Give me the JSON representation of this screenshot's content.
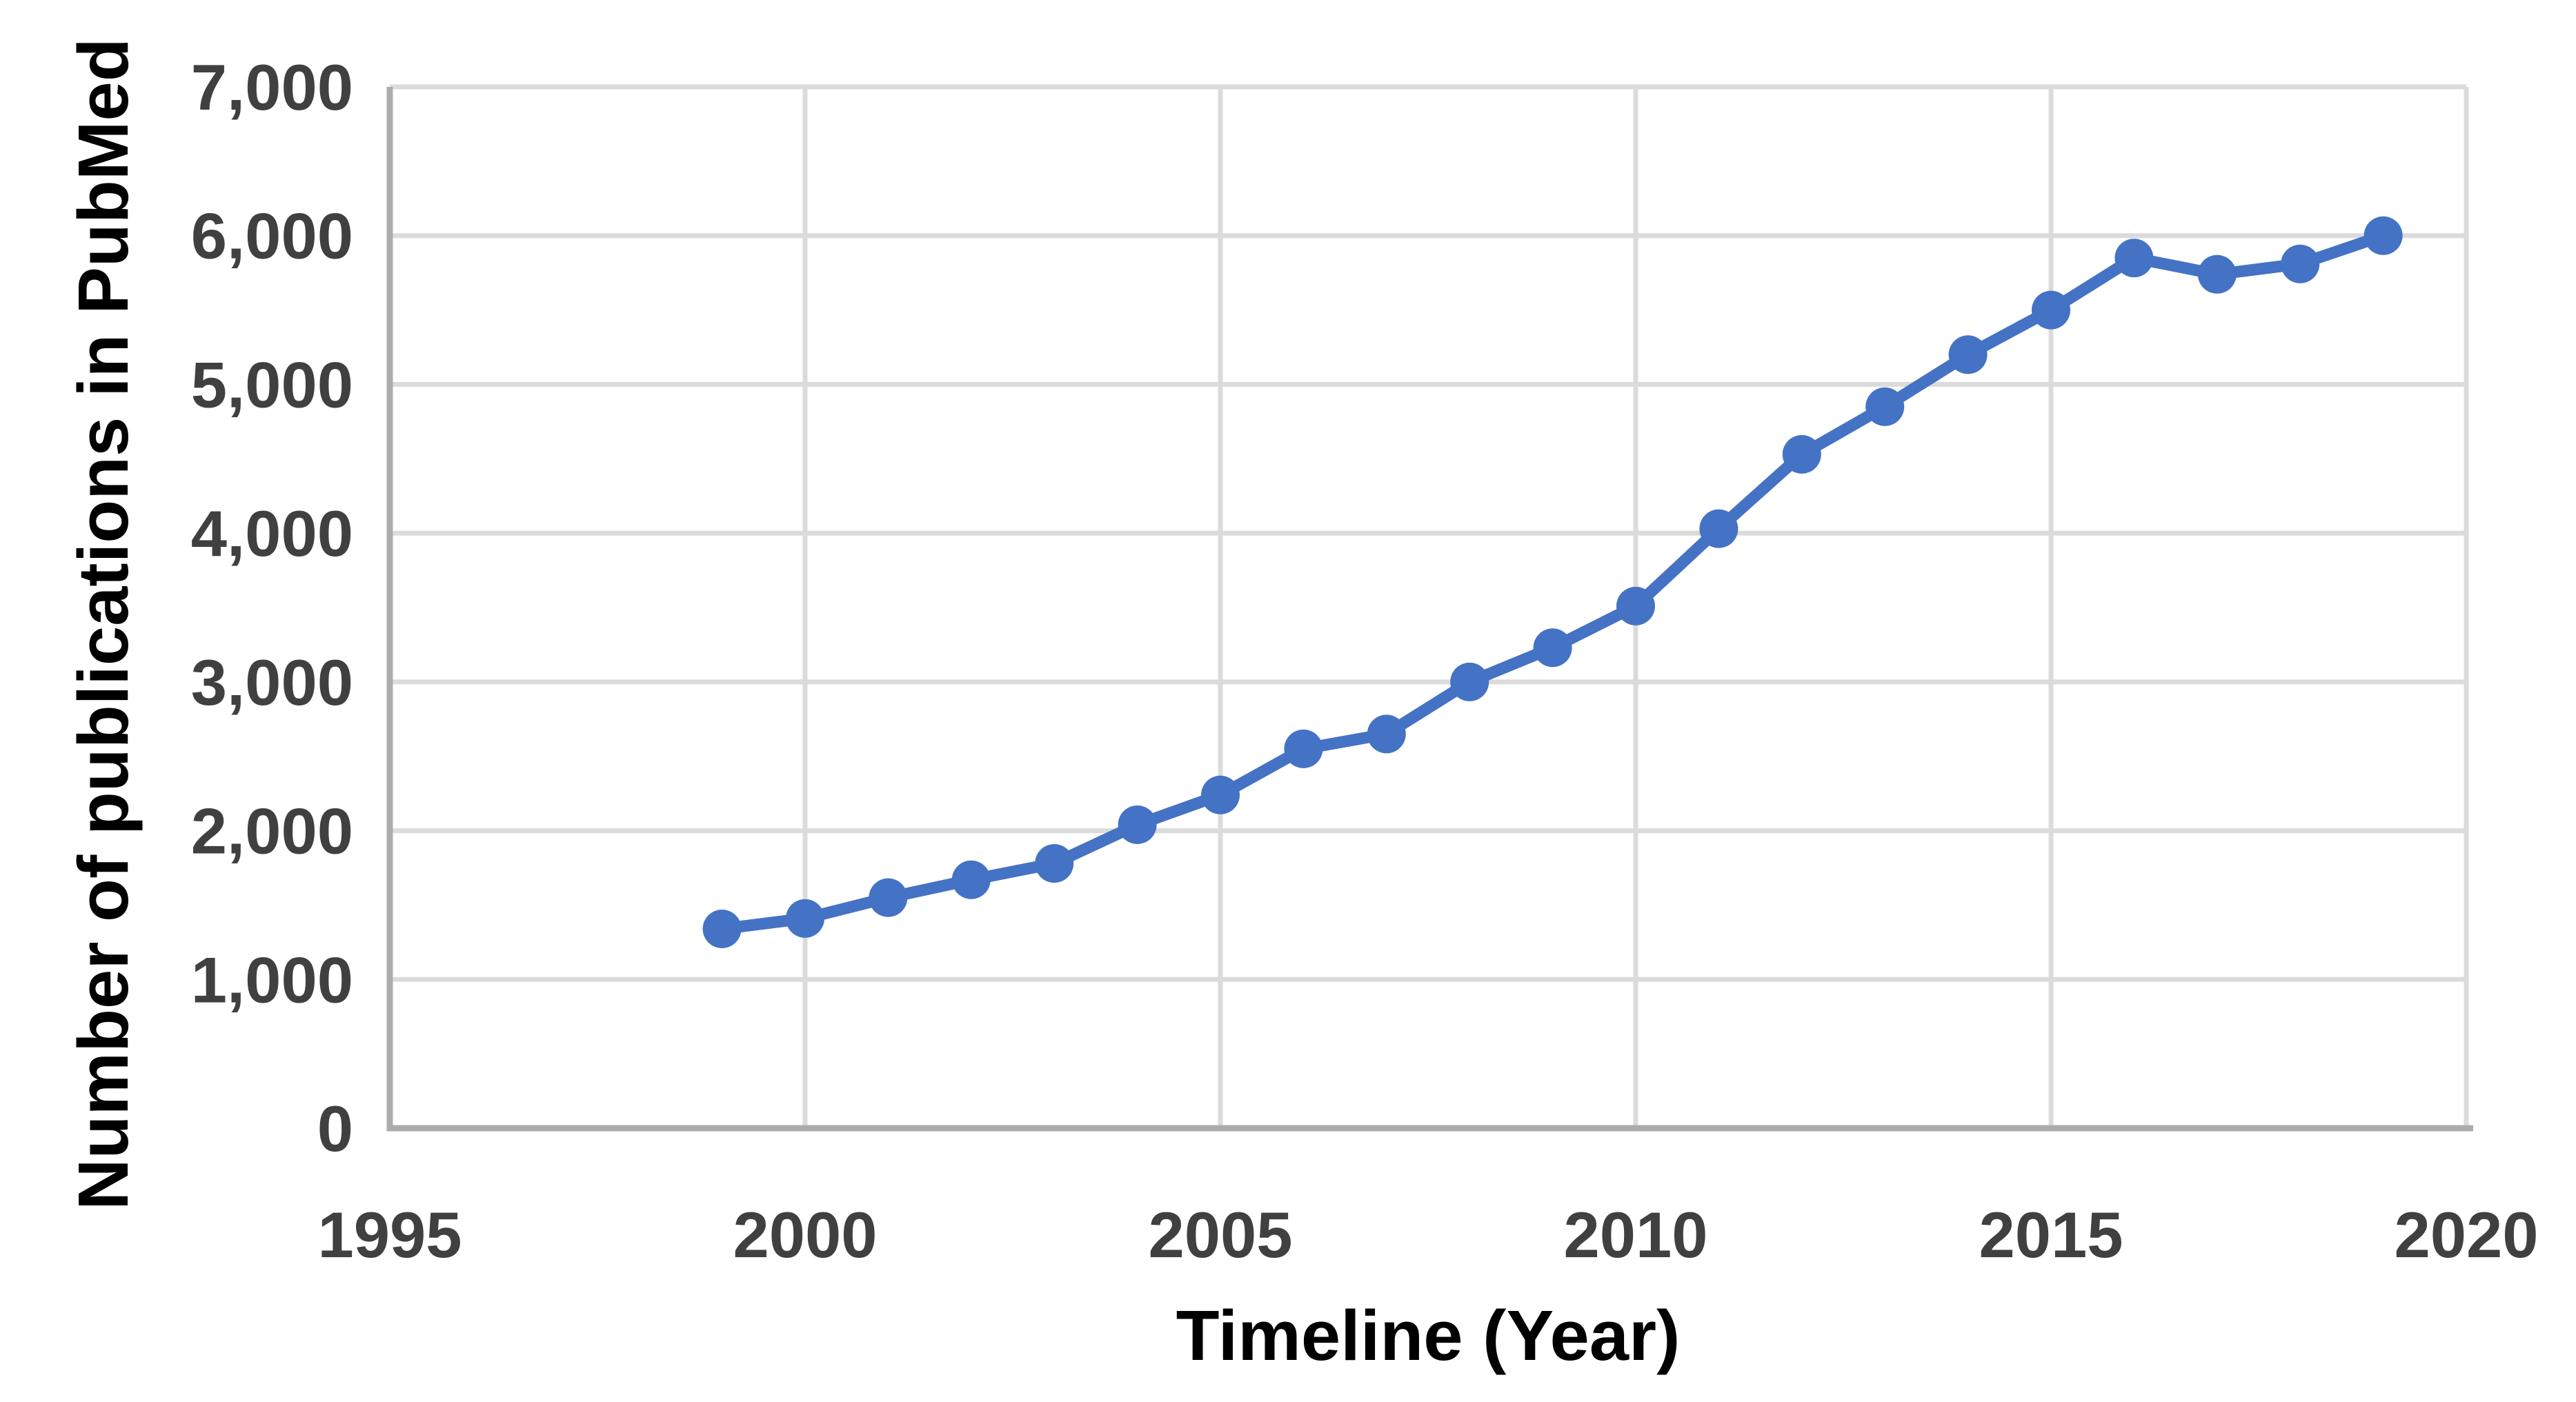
{
  "page": {
    "background": "#FFFFFF",
    "description": "Line chart of yearly PubMed publication counts"
  },
  "chart_data": {
    "type": "line",
    "title": "",
    "xlabel": "Timeline (Year)",
    "ylabel": "Number of publications in PubMed",
    "x": [
      1999,
      2000,
      2001,
      2002,
      2003,
      2004,
      2005,
      2006,
      2007,
      2008,
      2009,
      2010,
      2011,
      2012,
      2013,
      2014,
      2015,
      2016,
      2017,
      2018,
      2019
    ],
    "series": [
      {
        "name": "Publications in PubMed",
        "color": "#4472C4",
        "marker": "circle",
        "values": [
          1340,
          1410,
          1550,
          1670,
          1780,
          2040,
          2240,
          2550,
          2650,
          3000,
          3230,
          3510,
          4030,
          4530,
          4850,
          5200,
          5500,
          5850,
          5740,
          5810,
          6000
        ]
      }
    ],
    "xlim": [
      1995,
      2020
    ],
    "ylim": [
      0,
      7000
    ],
    "x_ticks": [
      1995,
      2000,
      2005,
      2010,
      2015,
      2020
    ],
    "x_tick_labels": [
      "1995",
      "2000",
      "2005",
      "2010",
      "2015",
      "2020"
    ],
    "y_ticks": [
      0,
      1000,
      2000,
      3000,
      4000,
      5000,
      6000,
      7000
    ],
    "y_tick_labels": [
      "0",
      "1,000",
      "2,000",
      "3,000",
      "4,000",
      "5,000",
      "6,000",
      "7,000"
    ],
    "grid": true,
    "legend_position": "none"
  },
  "style": {
    "line_color": "#4472C4",
    "marker_color": "#4472C4",
    "grid_color": "#DBDBDB",
    "axis_line_color": "#ACACAC",
    "tick_label_color": "#404040",
    "axis_title_color": "#000000"
  }
}
